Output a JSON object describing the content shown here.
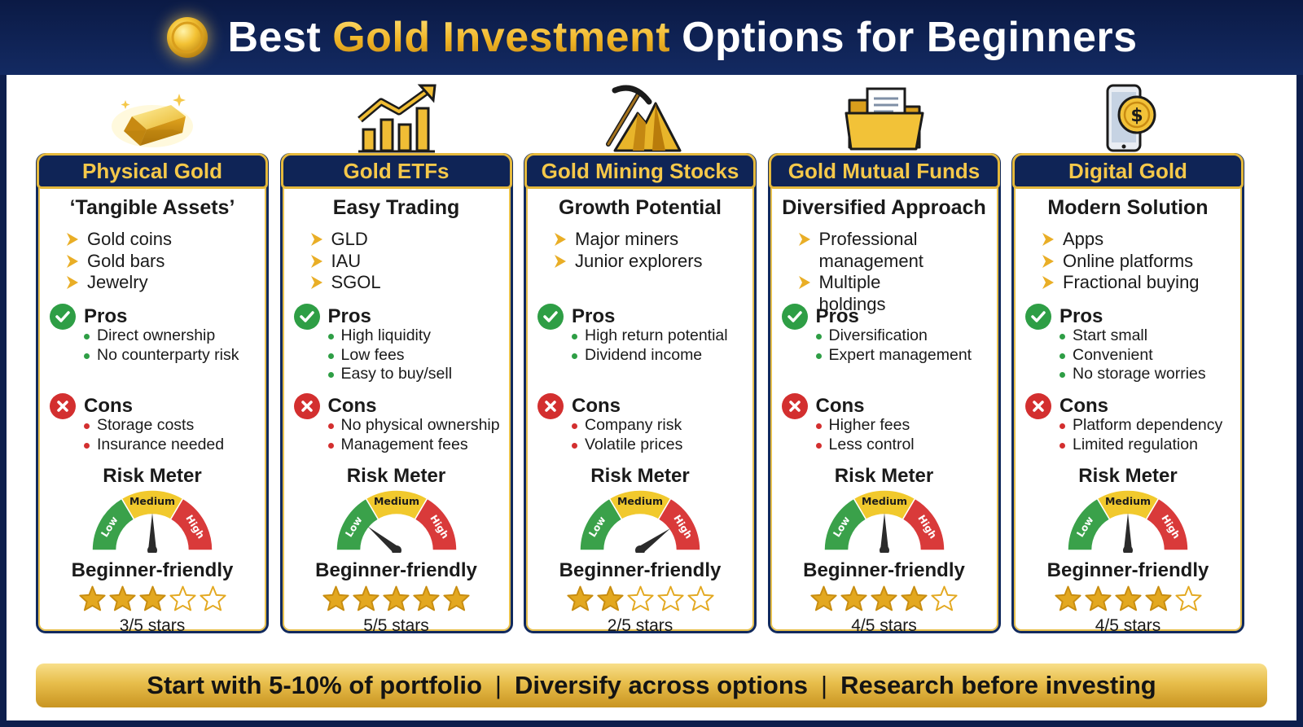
{
  "header": {
    "title_prefix": "Best",
    "title_highlight": "Gold Investment",
    "title_suffix": "Options for Beginners"
  },
  "labels": {
    "pros": "Pros",
    "cons": "Cons",
    "risk_meter": "Risk Meter",
    "gauge_low": "Low",
    "gauge_medium": "Medium",
    "gauge_high": "High",
    "beginner_friendly": "Beginner-friendly"
  },
  "colors": {
    "navy": "#0f2456",
    "gold": "#f2c238",
    "pro_green": "#2e9e45",
    "con_red": "#d32f2f",
    "gauge_green": "#3aa14a",
    "gauge_yellow": "#f1c92d",
    "gauge_red": "#d93a3a"
  },
  "cards": [
    {
      "icon": "gold-bar-icon",
      "title": "Physical Gold",
      "subtitle": "‘Tangible Assets’",
      "features": [
        "Gold coins",
        "Gold bars",
        "Jewelry"
      ],
      "pros": [
        "Direct ownership",
        "No counterparty risk"
      ],
      "cons": [
        "Storage costs",
        "Insurance needed"
      ],
      "risk_level": 0.5,
      "stars": 3,
      "stars_text": "3/5 stars"
    },
    {
      "icon": "growth-chart-icon",
      "title": "Gold ETFs",
      "subtitle": "Easy Trading",
      "features": [
        "GLD",
        "IAU",
        "SGOL"
      ],
      "pros": [
        "High liquidity",
        "Low fees",
        "Easy to buy/sell"
      ],
      "cons": [
        "No physical ownership",
        "Management fees"
      ],
      "risk_level": 0.22,
      "stars": 5,
      "stars_text": "5/5 stars"
    },
    {
      "icon": "pickaxe-mountain-icon",
      "title": "Gold Mining Stocks",
      "subtitle": "Growth Potential",
      "features": [
        "Major miners",
        "Junior explorers"
      ],
      "pros": [
        "High return potential",
        "Dividend income"
      ],
      "cons": [
        "Company risk",
        "Volatile prices"
      ],
      "risk_level": 0.8,
      "stars": 2,
      "stars_text": "2/5 stars"
    },
    {
      "icon": "folder-document-icon",
      "title": "Gold Mutual Funds",
      "subtitle": "Diversified Approach",
      "features": [
        "Professional management",
        "Multiple holdings"
      ],
      "pros": [
        "Diversification",
        "Expert management"
      ],
      "cons": [
        "Higher fees",
        "Less control"
      ],
      "risk_level": 0.5,
      "stars": 4,
      "stars_text": "4/5 stars"
    },
    {
      "icon": "smartphone-coin-icon",
      "title": "Digital Gold",
      "subtitle": "Modern Solution",
      "features": [
        "Apps",
        "Online platforms",
        "Fractional buying"
      ],
      "pros": [
        "Start small",
        "Convenient",
        "No storage worries"
      ],
      "cons": [
        "Platform dependency",
        "Limited regulation"
      ],
      "risk_level": 0.5,
      "stars": 4,
      "stars_text": "4/5 stars"
    }
  ],
  "footer": {
    "items": [
      "Start with 5-10% of portfolio",
      "Diversify across options",
      "Research before investing"
    ],
    "separator": "|"
  }
}
